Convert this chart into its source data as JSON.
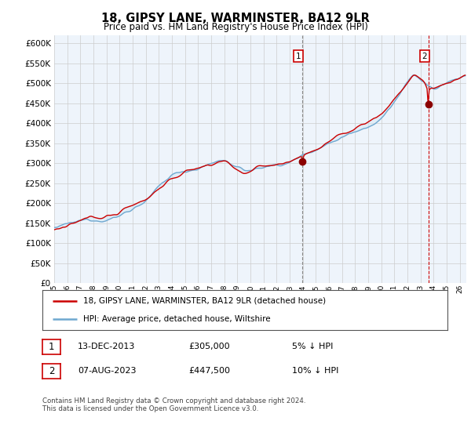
{
  "title": "18, GIPSY LANE, WARMINSTER, BA12 9LR",
  "subtitle": "Price paid vs. HM Land Registry's House Price Index (HPI)",
  "ytick_values": [
    0,
    50000,
    100000,
    150000,
    200000,
    250000,
    300000,
    350000,
    400000,
    450000,
    500000,
    550000,
    600000
  ],
  "ylim": [
    0,
    620000
  ],
  "hpi_color": "#6fa8d0",
  "price_color": "#cc0000",
  "fill_color": "#d6e8f5",
  "annotation1_year": 2013.96,
  "annotation1_price": 305000,
  "annotation2_year": 2023.6,
  "annotation2_price": 447500,
  "legend_line1": "18, GIPSY LANE, WARMINSTER, BA12 9LR (detached house)",
  "legend_line2": "HPI: Average price, detached house, Wiltshire",
  "footer": "Contains HM Land Registry data © Crown copyright and database right 2024.\nThis data is licensed under the Open Government Licence v3.0.",
  "background_color": "#ffffff",
  "grid_color": "#cccccc",
  "plot_bg_color": "#eef4fb"
}
